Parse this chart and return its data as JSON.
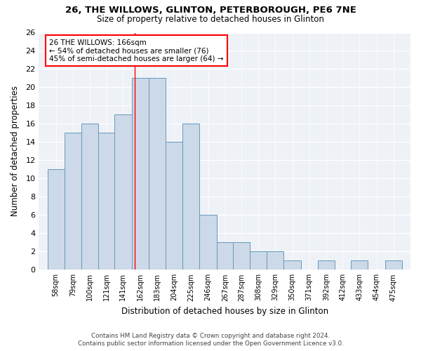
{
  "title1": "26, THE WILLOWS, GLINTON, PETERBOROUGH, PE6 7NE",
  "title2": "Size of property relative to detached houses in Glinton",
  "xlabel": "Distribution of detached houses by size in Glinton",
  "ylabel": "Number of detached properties",
  "bins": [
    58,
    79,
    100,
    121,
    141,
    162,
    183,
    204,
    225,
    246,
    267,
    287,
    308,
    329,
    350,
    371,
    392,
    412,
    433,
    454,
    475
  ],
  "counts": [
    11,
    15,
    16,
    15,
    17,
    21,
    21,
    14,
    16,
    6,
    3,
    3,
    2,
    2,
    1,
    0,
    1,
    0,
    1,
    0,
    1
  ],
  "bar_color": "#ccd9e8",
  "bar_edge_color": "#6699bb",
  "property_size": 166,
  "annotation_title": "26 THE WILLOWS: 166sqm",
  "annotation_line1": "← 54% of detached houses are smaller (76)",
  "annotation_line2": "45% of semi-detached houses are larger (64) →",
  "annotation_box_color": "white",
  "annotation_box_edge_color": "red",
  "vline_color": "red",
  "ylim": [
    0,
    26
  ],
  "yticks": [
    0,
    2,
    4,
    6,
    8,
    10,
    12,
    14,
    16,
    18,
    20,
    22,
    24,
    26
  ],
  "footer1": "Contains HM Land Registry data © Crown copyright and database right 2024.",
  "footer2": "Contains public sector information licensed under the Open Government Licence v3.0.",
  "bg_color": "#eef2f7"
}
